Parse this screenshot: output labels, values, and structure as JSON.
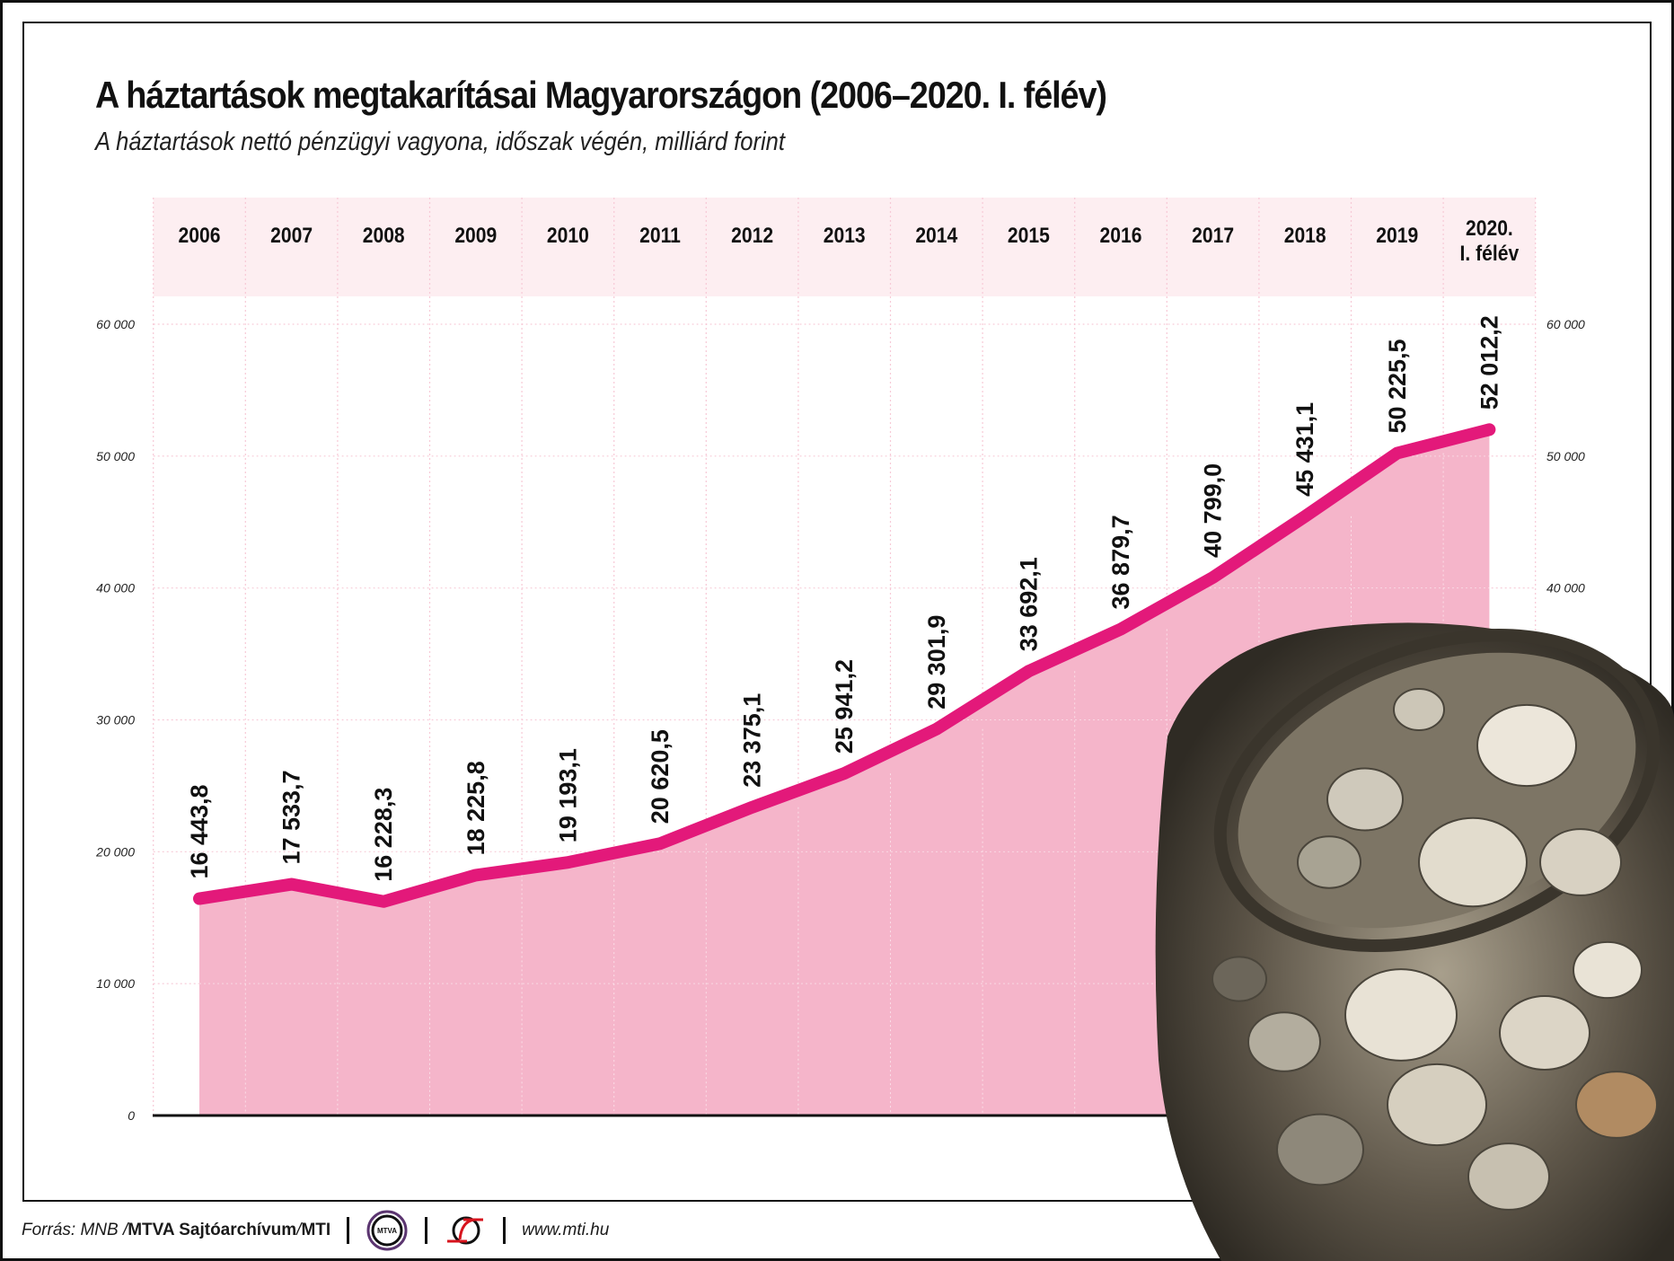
{
  "header": {
    "title": "A háztartások megtakarításai Magyarországon (2006–2020. I. félév)",
    "subtitle": "A háztartások nettó pénzügyi vagyona, időszak végén, milliárd forint"
  },
  "colors": {
    "line": "#e3197a",
    "area": "#f5b5ca",
    "header_band": "#fdeef1",
    "grid": "#f7c9d6",
    "axis": "#111111"
  },
  "chart_data": {
    "type": "area",
    "title": "A háztartások megtakarításai Magyarországon (2006–2020. I. félév)",
    "subtitle": "A háztartások nettó pénzügyi vagyona, időszak végén, milliárd forint",
    "xlabel": "",
    "ylabel": "milliárd forint",
    "categories": [
      "2006",
      "2007",
      "2008",
      "2009",
      "2010",
      "2011",
      "2012",
      "2013",
      "2014",
      "2015",
      "2016",
      "2017",
      "2018",
      "2019",
      "2020. I. félév"
    ],
    "category_lines": [
      [
        "2006"
      ],
      [
        "2007"
      ],
      [
        "2008"
      ],
      [
        "2009"
      ],
      [
        "2010"
      ],
      [
        "2011"
      ],
      [
        "2012"
      ],
      [
        "2013"
      ],
      [
        "2014"
      ],
      [
        "2015"
      ],
      [
        "2016"
      ],
      [
        "2017"
      ],
      [
        "2018"
      ],
      [
        "2019"
      ],
      [
        "2020.",
        "I. félév"
      ]
    ],
    "values": [
      16443.8,
      17533.7,
      16228.3,
      18225.8,
      19193.1,
      20620.5,
      23375.1,
      25941.2,
      29301.9,
      33692.1,
      36879.7,
      40799.0,
      45431.1,
      50225.5,
      52012.2
    ],
    "value_labels": [
      "16 443,8",
      "17 533,7",
      "16 228,3",
      "18 225,8",
      "19 193,1",
      "20 620,5",
      "23 375,1",
      "25 941,2",
      "29 301,9",
      "33 692,1",
      "36 879,7",
      "40 799,0",
      "45 431,1",
      "50 225,5",
      "52 012,2"
    ],
    "ylim": [
      0,
      60000
    ],
    "yticks": [
      0,
      10000,
      20000,
      30000,
      40000,
      50000,
      60000
    ],
    "ytick_labels": [
      "0",
      "10 000",
      "20 000",
      "30 000",
      "40 000",
      "50 000",
      "60 000"
    ],
    "right_ytick_labels": [
      "40 000",
      "50 000",
      "60 000"
    ],
    "grid": true,
    "legend": null,
    "x_labels_position": "top"
  },
  "footer": {
    "source_prefix": "Forrás: MNB / ",
    "source_bold": "MTVA Sajtóarchívum",
    "source_mid": " / ",
    "source_bold2": "MTI",
    "mtva_logo_text": "MTVA",
    "website": "www.mti.hu"
  },
  "decoration": {
    "image": "coin-jar-icon"
  }
}
